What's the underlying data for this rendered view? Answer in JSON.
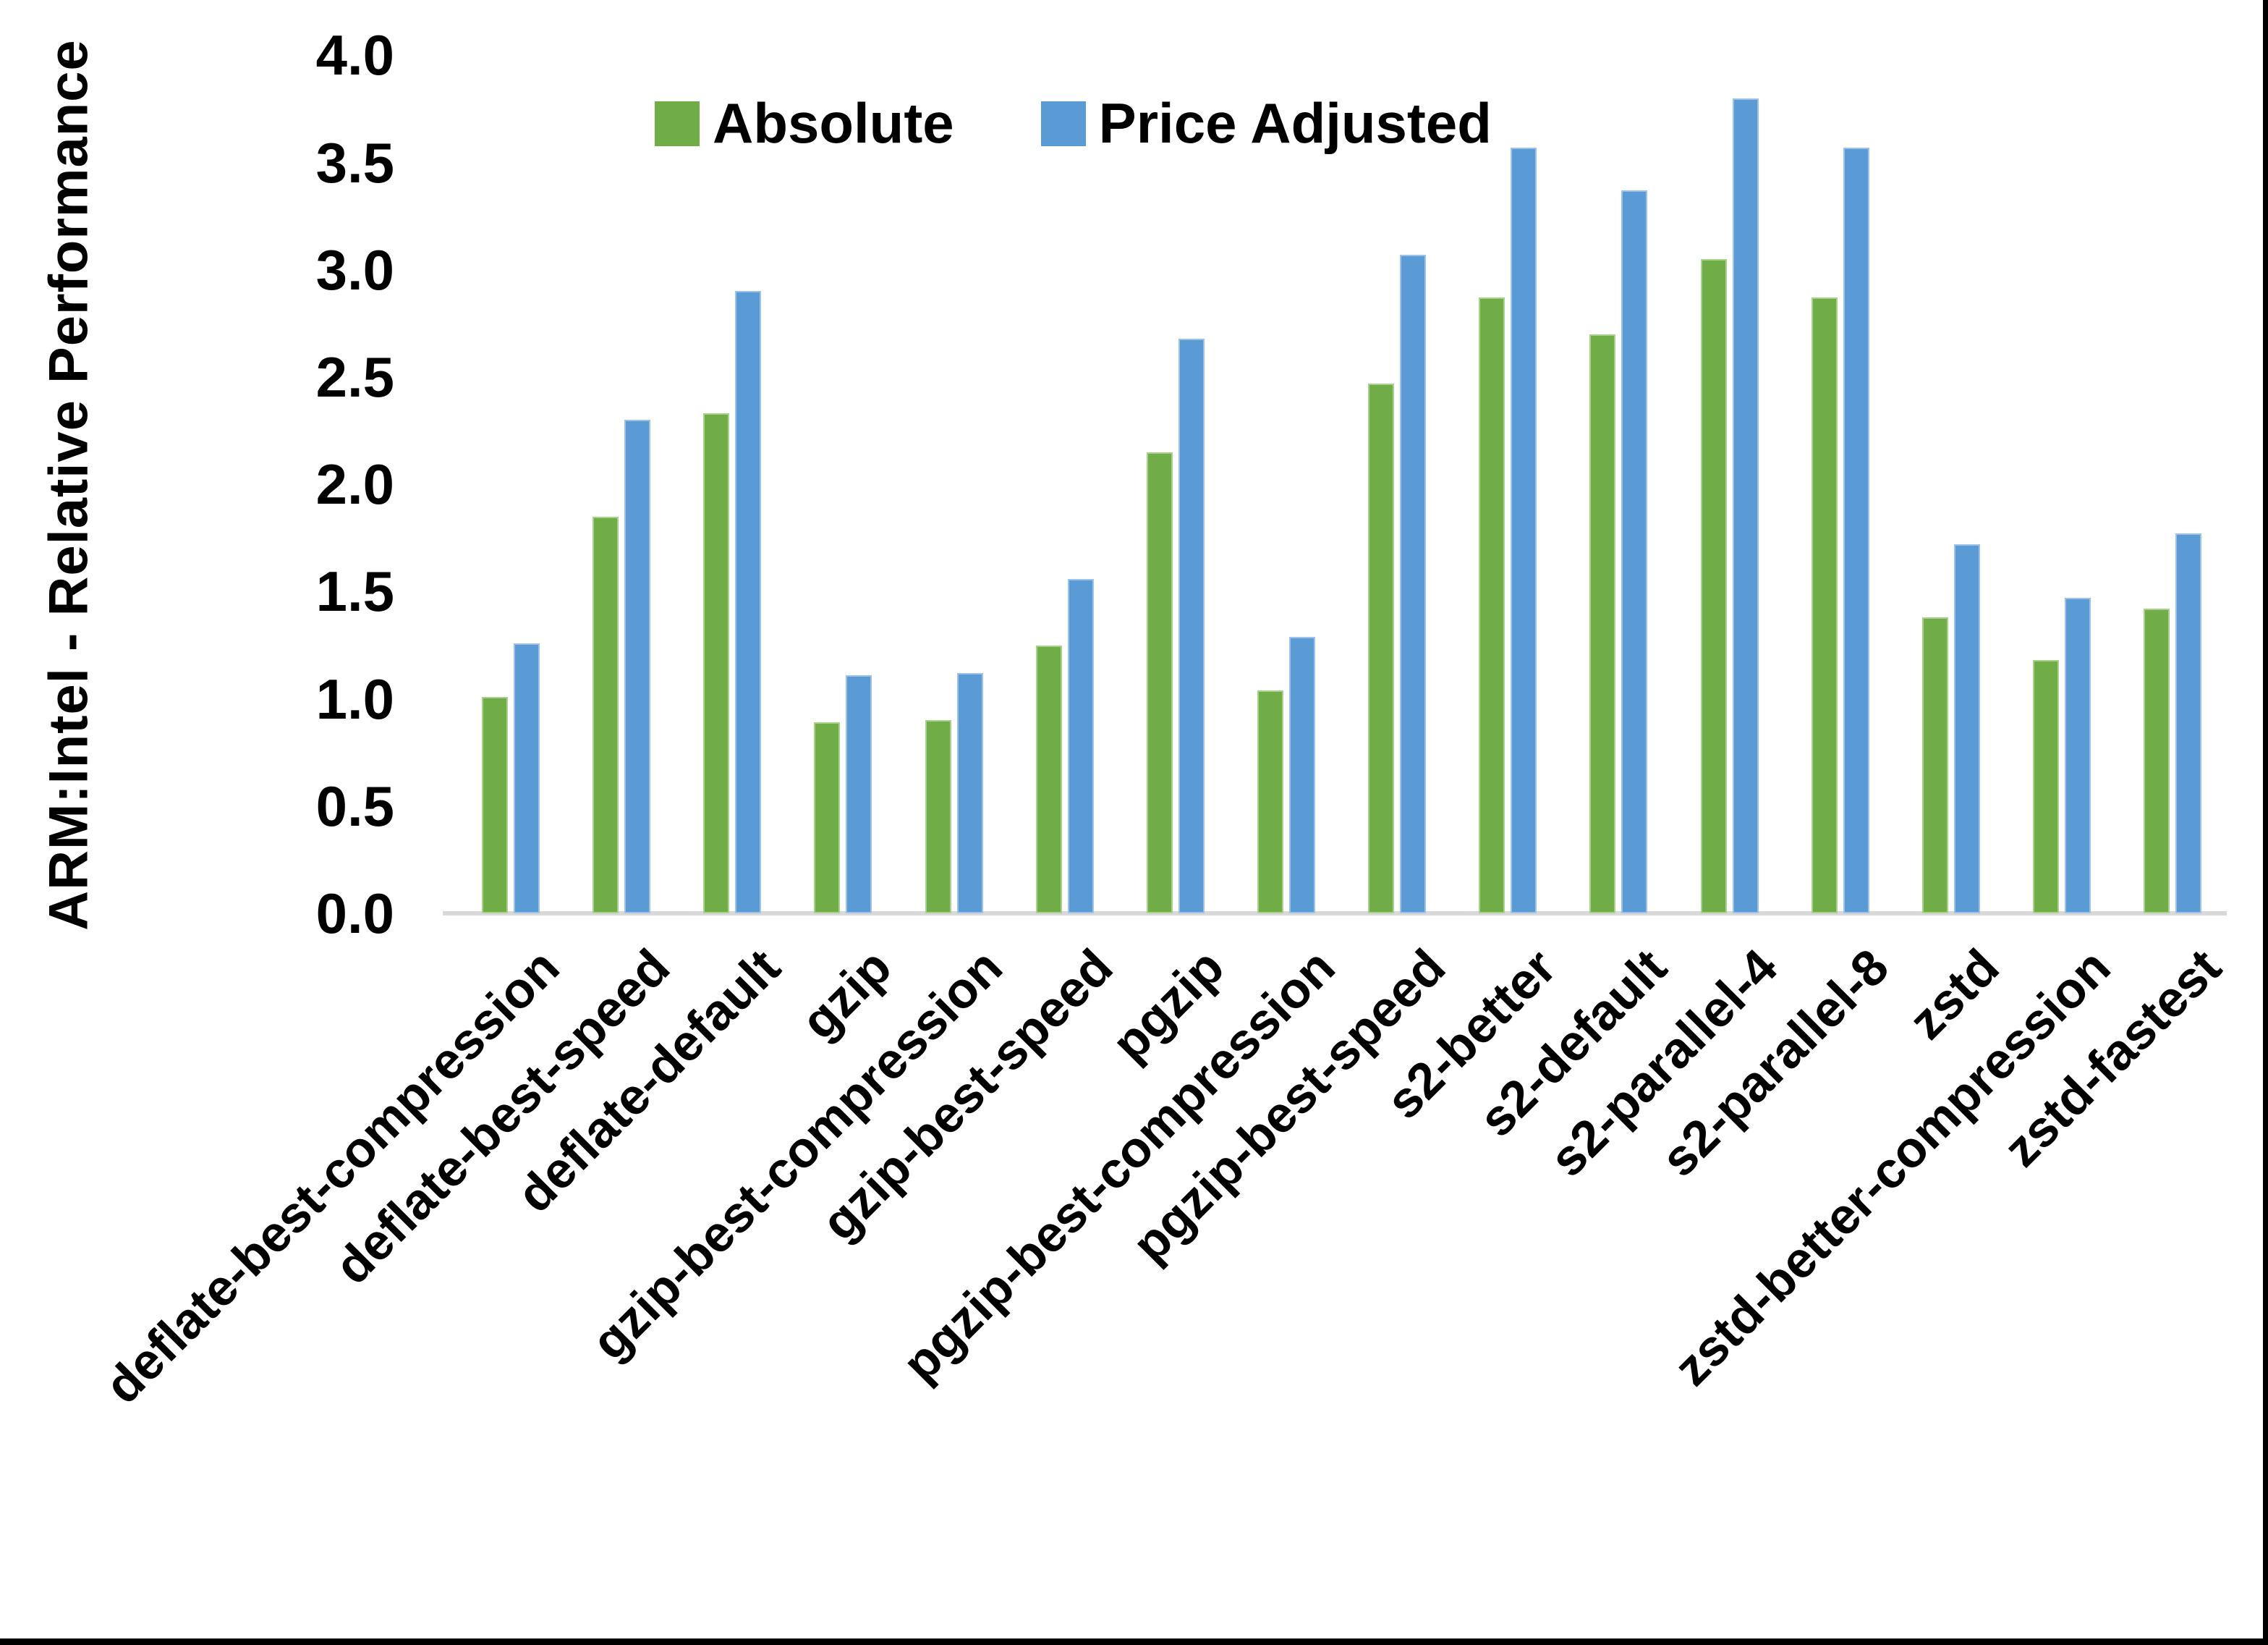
{
  "chart_data": {
    "type": "bar",
    "title": "",
    "xlabel": "",
    "ylabel": "ARM:Intel - Relative Performance",
    "ylim": [
      0.0,
      4.0
    ],
    "ytick_step": 0.5,
    "yticks": [
      "0.0",
      "0.5",
      "1.0",
      "1.5",
      "2.0",
      "2.5",
      "3.0",
      "3.5",
      "4.0"
    ],
    "grid": false,
    "legend_position": "top-center",
    "axis_line_color": "#D9D9D9",
    "text_color": "#000000",
    "categories": [
      "deflate-best-compression",
      "deflate-best-speed",
      "deflate-default",
      "gzip",
      "gzip-best-compression",
      "gzip-best-speed",
      "pgzip",
      "pgzip-best-compression",
      "pgzip-best-speed",
      "s2-better",
      "s2-default",
      "s2-parallel-4",
      "s2-parallel-8",
      "zstd",
      "zstd-better-compression",
      "zstd-fastest"
    ],
    "series": [
      {
        "name": "Absolute",
        "color": "#70AD47",
        "edge_color": "#A9D18E",
        "values": [
          1.01,
          1.85,
          2.33,
          0.89,
          0.9,
          1.25,
          2.15,
          1.04,
          2.47,
          2.87,
          2.7,
          3.05,
          2.87,
          1.38,
          1.18,
          1.42
        ]
      },
      {
        "name": "Price Adjusted",
        "color": "#5B9BD5",
        "edge_color": "#9DC3E8",
        "values": [
          1.26,
          2.3,
          2.9,
          1.11,
          1.12,
          1.56,
          2.68,
          1.29,
          3.07,
          3.57,
          3.37,
          3.8,
          3.57,
          1.72,
          1.47,
          1.77
        ]
      }
    ]
  }
}
